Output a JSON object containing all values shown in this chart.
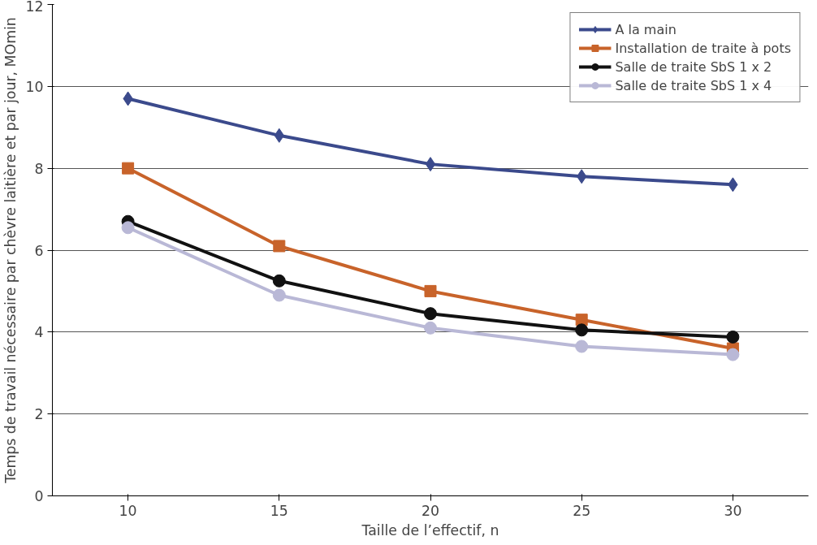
{
  "chart_data": {
    "type": "line",
    "xlabel": "Taille de l’effectif, n",
    "ylabel": "Temps de travail nécessaire par chèvre laitière et par jour, MOmin",
    "categories": [
      "10",
      "15",
      "20",
      "25",
      "30"
    ],
    "series": [
      {
        "name": "A la main",
        "color": "#3b4a8c",
        "marker": "diamond",
        "values": [
          9.7,
          8.8,
          8.1,
          7.8,
          7.6
        ]
      },
      {
        "name": "Installation de traite à pots",
        "color": "#c8632a",
        "marker": "square",
        "values": [
          8.0,
          6.1,
          5.0,
          4.3,
          3.6
        ]
      },
      {
        "name": "Salle de traite SbS 1 x 2",
        "color": "#111111",
        "marker": "circle",
        "values": [
          6.7,
          5.25,
          4.45,
          4.05,
          3.88
        ]
      },
      {
        "name": "Salle de traite SbS 1 x 4",
        "color": "#b9b8d6",
        "marker": "circle",
        "values": [
          6.55,
          4.9,
          4.1,
          3.65,
          3.45
        ]
      }
    ],
    "ylim": [
      0,
      12
    ],
    "yticks": [
      0,
      2,
      4,
      6,
      8,
      10,
      12
    ],
    "grid": "y",
    "legend": "top right",
    "line_style": "solid"
  }
}
